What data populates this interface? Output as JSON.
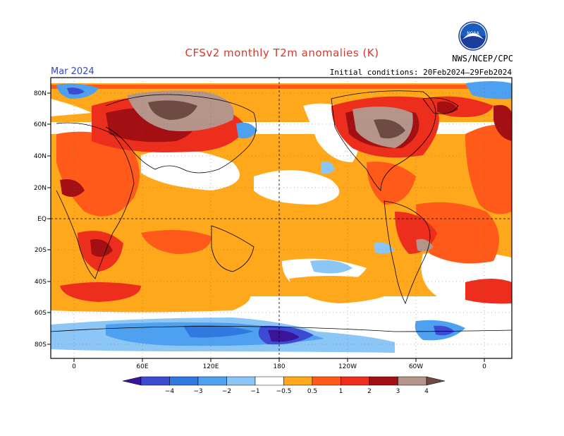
{
  "header": {
    "title": "CFSv2 monthly T2m anomalies (K)",
    "month": "Mar 2024",
    "initial_conditions": "Initial conditions: 20Feb2024–29Feb2024",
    "credit": "NWS/NCEP/CPC",
    "logo_text": "NOAA"
  },
  "map": {
    "lat_labels": [
      "80N",
      "60N",
      "40N",
      "20N",
      "EQ",
      "20S",
      "40S",
      "60S",
      "80S"
    ],
    "lon_labels": [
      "0",
      "60E",
      "120E",
      "180",
      "120W",
      "60W",
      "0"
    ]
  },
  "colorbar": {
    "labels": [
      "−4",
      "−3",
      "−2",
      "−1",
      "−0.5",
      "0.5",
      "1",
      "2",
      "3",
      "4"
    ],
    "colors": [
      "#3a1599",
      "#3d4bd3",
      "#2f79e0",
      "#4ea1f0",
      "#8cc6f7",
      "#ffffff",
      "#ffa81c",
      "#ff5a1a",
      "#ee2e1c",
      "#a30f12",
      "#b59489",
      "#6d4a42"
    ]
  }
}
